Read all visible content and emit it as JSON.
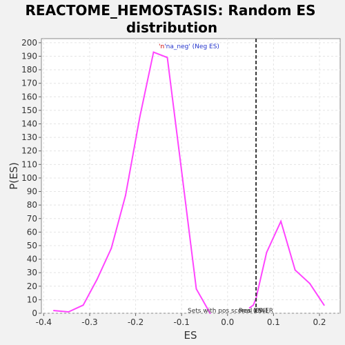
{
  "chart_data": {
    "type": "line",
    "title_line1": "REACTOME_HEMOSTASIS: Random ES",
    "title_line2": "distribution",
    "xlabel": "ES",
    "ylabel": "P(ES)",
    "xlim": [
      -0.405,
      0.245
    ],
    "ylim": [
      0,
      203
    ],
    "xticks": [
      "-0.4",
      "-0.3",
      "-0.2",
      "-0.1",
      "0.0",
      "0.1",
      "0.2"
    ],
    "xtick_values": [
      -0.4,
      -0.3,
      -0.2,
      -0.1,
      0.0,
      0.1,
      0.2
    ],
    "yticks": [
      0,
      10,
      20,
      30,
      40,
      50,
      60,
      70,
      80,
      90,
      100,
      110,
      120,
      130,
      140,
      150,
      160,
      170,
      180,
      190,
      200
    ],
    "grid": true,
    "series": [
      {
        "color": "#ff44ff",
        "x": [
          -0.378,
          -0.346,
          -0.314,
          -0.284,
          -0.253,
          -0.222,
          -0.191,
          -0.161,
          -0.131,
          -0.101,
          -0.068,
          -0.038
        ],
        "y": [
          2,
          1,
          6,
          25,
          48,
          87,
          145,
          193,
          189,
          108,
          18,
          0
        ]
      },
      {
        "color": "#ff44ff",
        "x": [
          0.048,
          0.056,
          0.062,
          0.085,
          0.116,
          0.147,
          0.179,
          0.21
        ],
        "y": [
          4,
          6,
          11,
          45,
          68,
          32,
          22,
          6
        ]
      }
    ],
    "real_es": 0.062,
    "real_es_label": "Real ES",
    "neg_annotation": "'na_neg' (Neg ES)",
    "pos_annotation": "Sets with pos scores (0%)",
    "fwer_annotation": "FWER"
  }
}
